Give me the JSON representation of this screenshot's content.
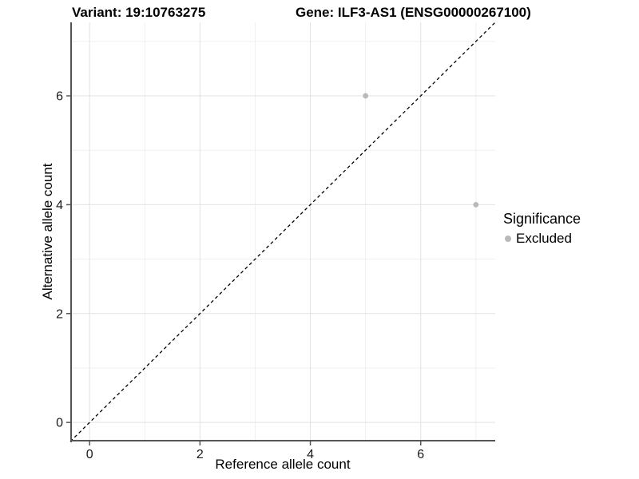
{
  "header": {
    "variant_title": "Variant: 19:10763275",
    "gene_title": "Gene: ILF3-AS1 (ENSG00000267100)"
  },
  "axes": {
    "x_label": "Reference allele count",
    "y_label": "Alternative allele count"
  },
  "legend": {
    "title": "Significance",
    "items": [
      {
        "label": "Excluded",
        "marker": "circle",
        "color": "#b9b9b9"
      }
    ],
    "position": "right"
  },
  "chart_data": {
    "type": "scatter",
    "title": "Variant: 19:10763275 | Gene: ILF3-AS1 (ENSG00000267100)",
    "xlabel": "Reference allele count",
    "ylabel": "Alternative allele count",
    "xlim": [
      -0.35,
      7.35
    ],
    "ylim": [
      -0.35,
      7.35
    ],
    "x_ticks": [
      0,
      2,
      4,
      6
    ],
    "y_ticks": [
      0,
      2,
      4,
      6
    ],
    "x_minor_gridlines": [
      1,
      3,
      5,
      7
    ],
    "y_minor_gridlines": [
      1,
      3,
      5,
      7
    ],
    "grid": true,
    "legend_position": "right",
    "series": [
      {
        "name": "Excluded",
        "color": "#b9b9b9",
        "marker": "circle",
        "points": [
          [
            5,
            6
          ],
          [
            7,
            4
          ]
        ]
      }
    ],
    "reference_line": {
      "equation": "y = x",
      "style": "dashed",
      "color": "#000000",
      "from": [
        -0.35,
        -0.35
      ],
      "to": [
        7.35,
        7.35
      ]
    }
  },
  "colors": {
    "background": "#ffffff",
    "grid_major": "#e2e2e2",
    "grid_minor": "#efefef",
    "axis_line": "#555555",
    "tick_mark": "#555555",
    "tick_label": "#1a1a1a",
    "point": "#b9b9b9",
    "reference_line": "#000000"
  }
}
